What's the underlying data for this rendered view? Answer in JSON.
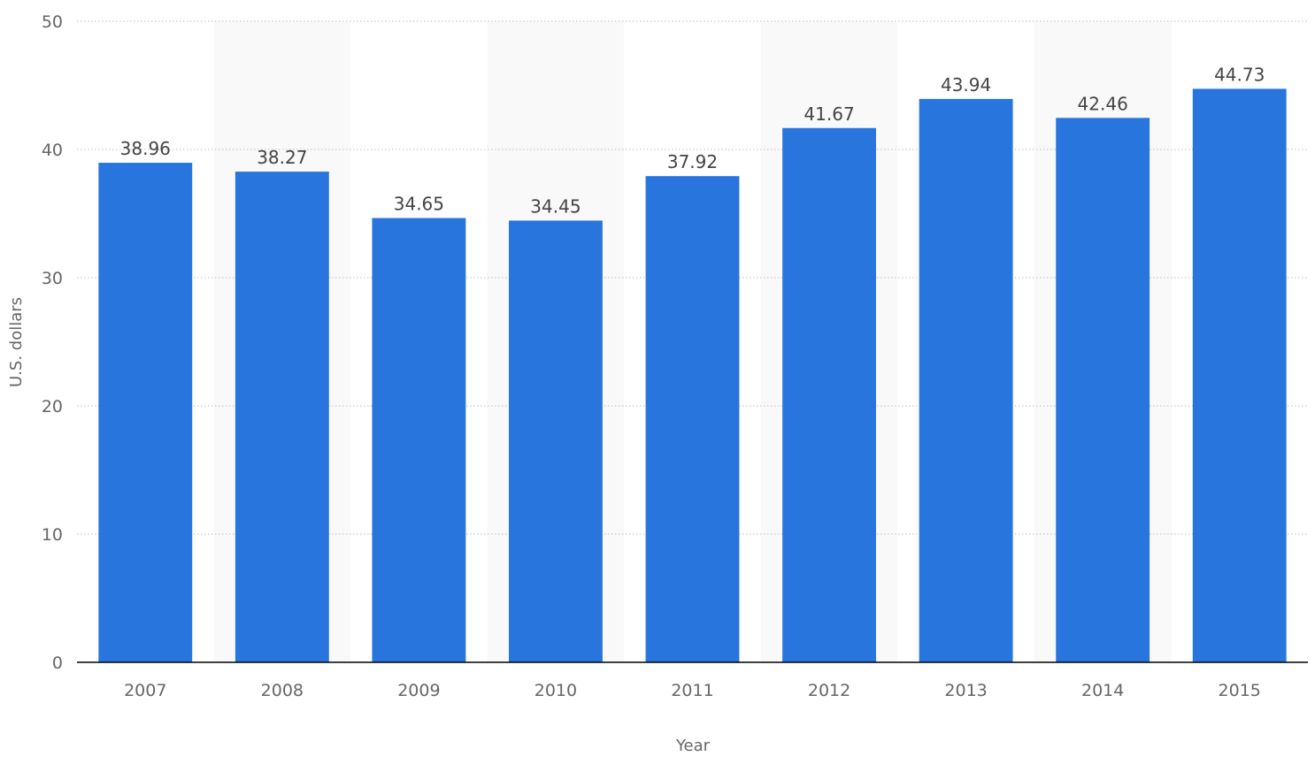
{
  "chart_data": {
    "type": "bar",
    "title": "",
    "xlabel": "Year",
    "ylabel": "U.S. dollars",
    "categories": [
      "2007",
      "2008",
      "2009",
      "2010",
      "2011",
      "2012",
      "2013",
      "2014",
      "2015"
    ],
    "series": [
      {
        "values": [
          38.96,
          38.27,
          34.65,
          34.45,
          37.92,
          41.67,
          43.94,
          42.46,
          44.73
        ],
        "color": "#2876dd"
      }
    ],
    "value_labels": [
      "38.96",
      "38.27",
      "34.65",
      "34.45",
      "37.92",
      "41.67",
      "43.94",
      "42.46",
      "44.73"
    ],
    "ylim": [
      0,
      50
    ],
    "yticks": [
      "0",
      "10",
      "20",
      "30",
      "40",
      "50"
    ],
    "grid": true,
    "grid_style": "dotted",
    "alternating_column_bands": true,
    "band_color": "#f9f9f9",
    "axis_color": "#000000"
  }
}
